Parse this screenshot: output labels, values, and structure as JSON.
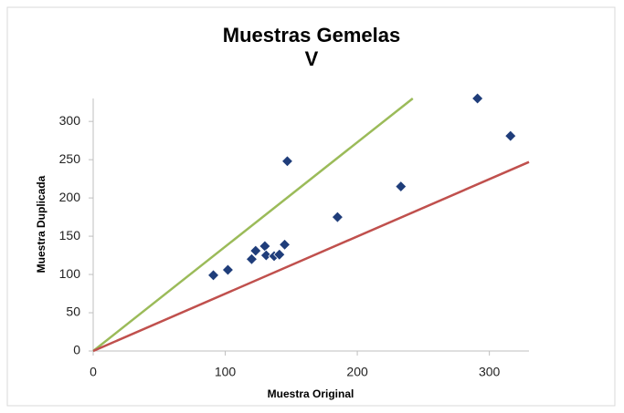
{
  "chart_data": {
    "type": "scatter",
    "title": [
      "Muestras Gemelas",
      "V"
    ],
    "xlabel": "Muestra Original",
    "ylabel": "Muestra Duplicada",
    "xlim": [
      0,
      330
    ],
    "ylim": [
      0,
      330
    ],
    "xticks": [
      0,
      100,
      200,
      300
    ],
    "yticks": [
      0,
      50,
      100,
      150,
      200,
      250,
      300
    ],
    "grid": false,
    "series": [
      {
        "mode": "markers",
        "color": "#1f3d7a",
        "x": [
          91,
          102,
          120,
          123,
          130,
          131,
          137,
          141,
          145,
          147,
          185,
          233,
          291,
          316
        ],
        "values": [
          99,
          106,
          120,
          131,
          137,
          125,
          124,
          126,
          139,
          248,
          175,
          215,
          330,
          281
        ]
      },
      {
        "mode": "line",
        "color": "#9bbb59",
        "x": [
          0,
          242
        ],
        "values": [
          0,
          330
        ]
      },
      {
        "mode": "line",
        "color": "#c0504d",
        "x": [
          0,
          330
        ],
        "values": [
          0,
          247
        ]
      }
    ]
  }
}
